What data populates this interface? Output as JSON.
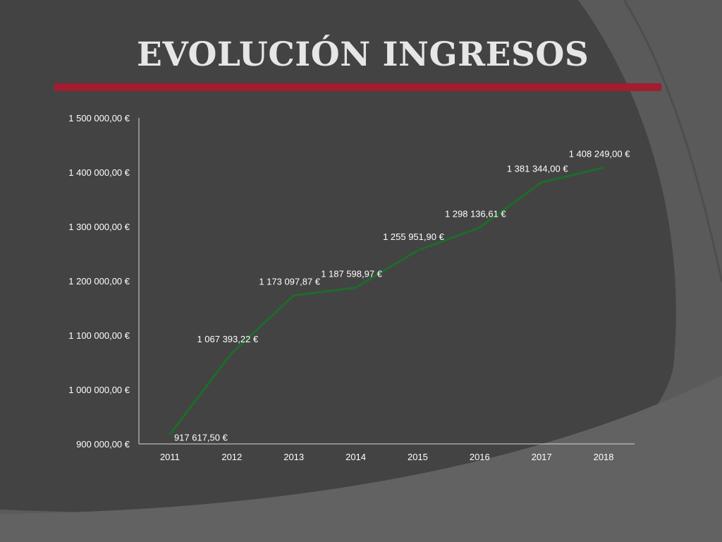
{
  "slide": {
    "title": "EVOLUCIÓN INGRESOS",
    "colors": {
      "background_dark": "#434343",
      "background_light": "#5a5a5a",
      "title_text": "#e6e6e6",
      "title_rule": "#a11d2f",
      "series_line": "#1f6b2a",
      "chart_text": "#ffffff",
      "axis_line": "#d9d9d9"
    }
  },
  "chart_data": {
    "type": "line",
    "title": "",
    "xlabel": "",
    "ylabel": "",
    "categories": [
      "2011",
      "2012",
      "2013",
      "2014",
      "2015",
      "2016",
      "2017",
      "2018"
    ],
    "series": [
      {
        "values": [
          917617.5,
          1067393.22,
          1173097.87,
          1187598.97,
          1255951.9,
          1298136.61,
          1381344.0,
          1408249.0
        ],
        "data_labels": [
          "917 617,50 €",
          "1 067 393,22 €",
          "1 173 097,87 €",
          "1 187 598,97 €",
          "1 255 951,90 €",
          "1 298 136,61 €",
          "1 381 344,00 €",
          "1 408 249,00 €"
        ],
        "color": "#1f6b2a"
      }
    ],
    "ylim": [
      900000,
      1500000
    ],
    "y_ticks": [
      900000,
      1000000,
      1100000,
      1200000,
      1300000,
      1400000,
      1500000
    ],
    "y_tick_labels": [
      "900 000,00 €",
      "1 000 000,00 €",
      "1 100 000,00 €",
      "1 200 000,00 €",
      "1 300 000,00 €",
      "1 400 000,00 €",
      "1 500 000,00 €"
    ],
    "grid": false,
    "legend": "none"
  }
}
